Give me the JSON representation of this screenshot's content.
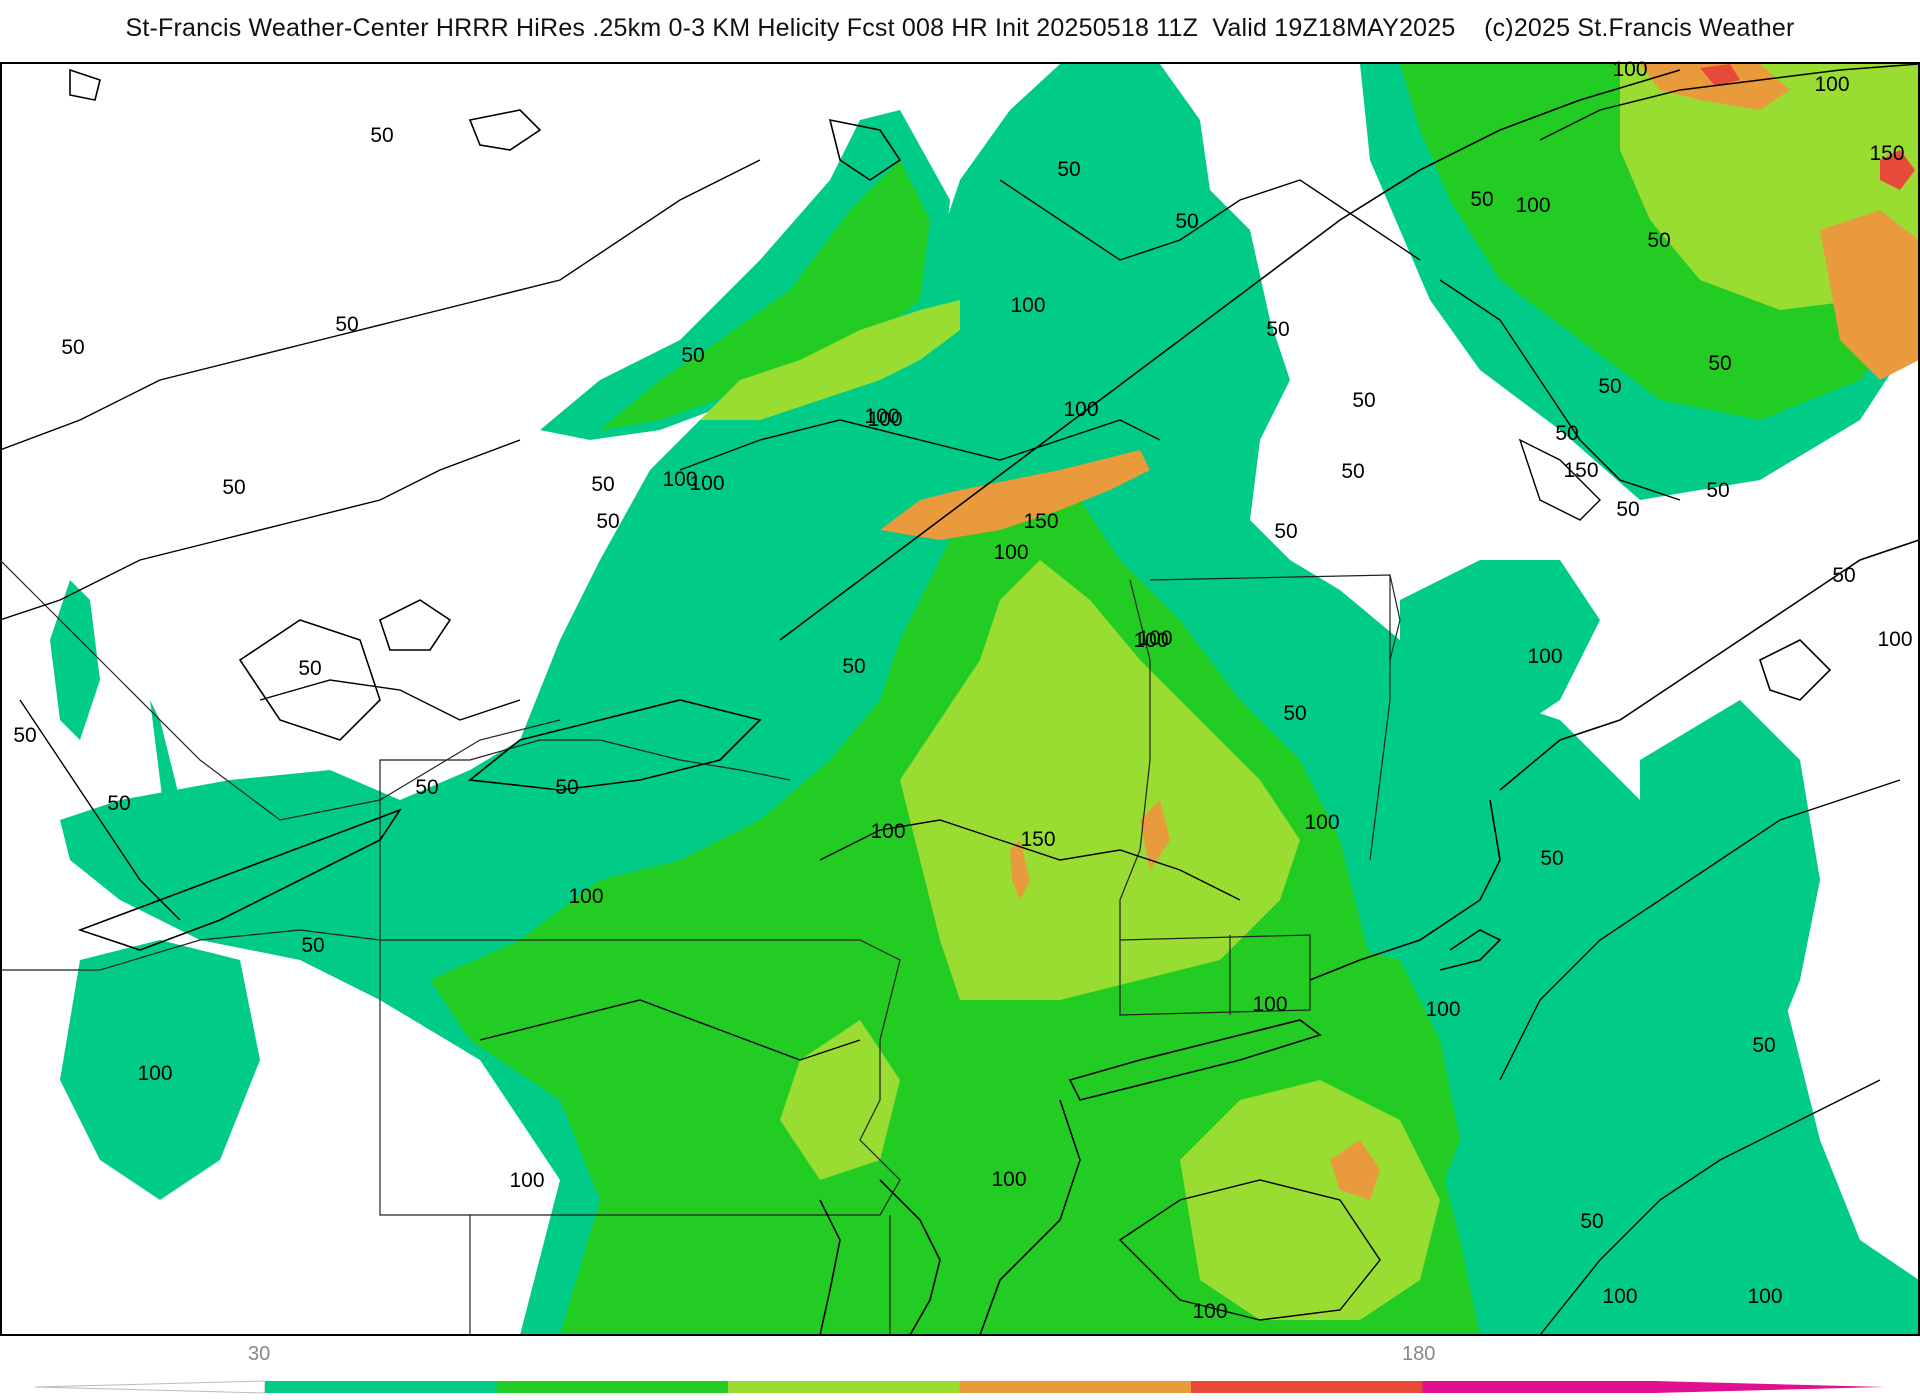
{
  "title": "St-Francis Weather-Center HRRR HiRes .25km 0-3 KM Helicity Fcst 008 HR Init 20250518 11Z  Valid 19Z18MAY2025    (c)2025 St.Francis Weather",
  "colors": {
    "c1": "#00cc88",
    "c2": "#22cc22",
    "c3": "#99dd33",
    "c4": "#e89a3c",
    "c5": "#e84a3a",
    "c6": "#e01090",
    "contour": "#000000",
    "border": "#999999"
  },
  "colorbar": {
    "tick_labels": [
      "30",
      "180"
    ],
    "colors": [
      "#00cc88",
      "#22cc22",
      "#99dd33",
      "#e89a3c",
      "#e84a3a",
      "#e01090"
    ]
  },
  "contour_labels": [
    "50",
    "50",
    "50",
    "50",
    "50",
    "50",
    "50",
    "50",
    "50",
    "50",
    "50",
    "50",
    "50",
    "50",
    "50",
    "50",
    "50",
    "50",
    "50",
    "50",
    "50",
    "50",
    "50",
    "50",
    "50",
    "50",
    "50",
    "50",
    "50",
    "50",
    "50",
    "50",
    "100",
    "100",
    "100",
    "100",
    "100",
    "100",
    "100",
    "100",
    "100",
    "100",
    "100",
    "100",
    "100",
    "100",
    "100",
    "100",
    "100",
    "100",
    "100",
    "100",
    "100",
    "100",
    "100",
    "100",
    "100",
    "150",
    "150",
    "150",
    "150"
  ]
}
